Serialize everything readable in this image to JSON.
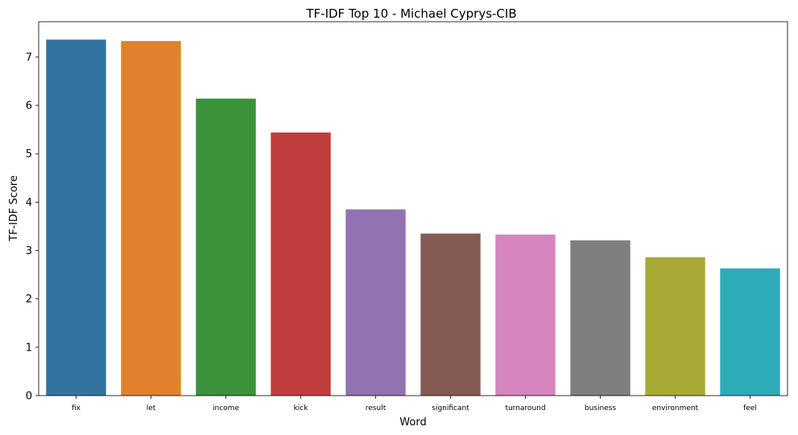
{
  "chart_data": {
    "type": "bar",
    "title": "TF-IDF Top 10 - Michael Cyprys-CIB",
    "xlabel": "Word",
    "ylabel": "TF-IDF Score",
    "categories": [
      "fix",
      "let",
      "income",
      "kick",
      "result",
      "significant",
      "turnaround",
      "business",
      "environment",
      "feel"
    ],
    "values": [
      7.36,
      7.33,
      6.14,
      5.44,
      3.85,
      3.35,
      3.33,
      3.21,
      2.86,
      2.63
    ],
    "colors": [
      "#3274a1",
      "#e1812c",
      "#3a923a",
      "#c03d3e",
      "#9372b2",
      "#845b53",
      "#d684bd",
      "#7f7f7f",
      "#a9aa35",
      "#2eabb8"
    ],
    "ylim": [
      0,
      7.73
    ],
    "yticks": [
      0,
      1,
      2,
      3,
      4,
      5,
      6,
      7
    ],
    "grid": false,
    "legend": "none"
  }
}
